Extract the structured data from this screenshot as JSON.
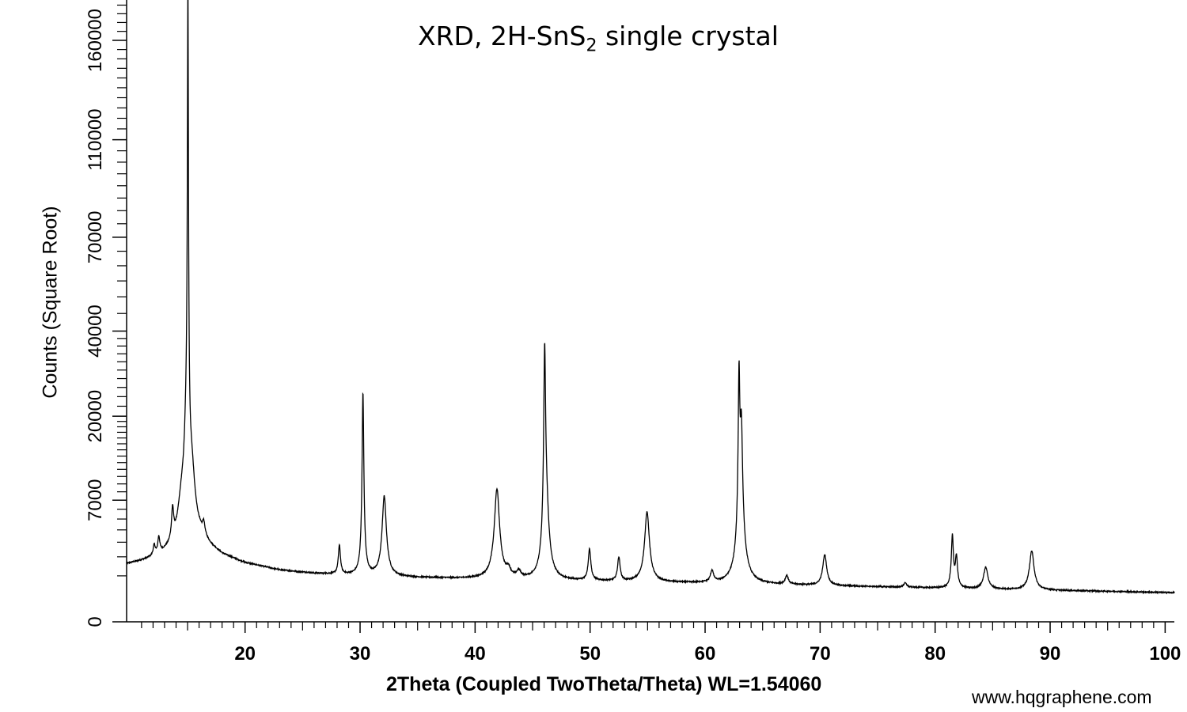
{
  "chart_data": {
    "type": "line",
    "title_main": "XRD, 2H-SnS",
    "title_sub": "2",
    "title_rest": " single crystal",
    "xlabel": "2Theta (Coupled TwoTheta/Theta) WL=1.54060",
    "ylabel": "Counts (Square Root)",
    "y_scale": "sqrt",
    "xlim": [
      9.7,
      100.8
    ],
    "ylim": [
      0,
      183000
    ],
    "x_ticks": [
      20,
      30,
      40,
      50,
      60,
      70,
      80,
      90,
      100
    ],
    "x_tick_labels": [
      "20",
      "30",
      "40",
      "50",
      "60",
      "70",
      "80",
      "90",
      "100"
    ],
    "y_ticks": [
      0,
      7000,
      20000,
      40000,
      70000,
      110000,
      160000
    ],
    "y_tick_labels": [
      "0",
      "7000",
      "20000",
      "40000",
      "70000",
      "110000",
      "160000"
    ],
    "grid": false,
    "series": [
      {
        "background": [
          [
            9.7,
            1550
          ],
          [
            11.0,
            1700
          ],
          [
            12.5,
            1950
          ],
          [
            14.0,
            2400
          ],
          [
            16.0,
            3100
          ],
          [
            17.0,
            2500
          ],
          [
            18.0,
            2050
          ],
          [
            20.0,
            1600
          ],
          [
            23.0,
            1250
          ],
          [
            26.0,
            1100
          ],
          [
            30.0,
            1000
          ],
          [
            35.0,
            920
          ],
          [
            40.0,
            870
          ],
          [
            45.0,
            820
          ],
          [
            50.0,
            780
          ],
          [
            55.0,
            740
          ],
          [
            60.0,
            700
          ],
          [
            65.0,
            660
          ],
          [
            70.0,
            620
          ],
          [
            75.0,
            580
          ],
          [
            80.0,
            540
          ],
          [
            85.0,
            500
          ],
          [
            90.0,
            470
          ],
          [
            95.0,
            440
          ],
          [
            100.8,
            400
          ]
        ],
        "peaks": [
          [
            12.1,
            700,
            0.1
          ],
          [
            12.5,
            1200,
            0.1
          ],
          [
            13.7,
            2900,
            0.1
          ],
          [
            14.5,
            3500,
            0.35
          ],
          [
            15.03,
            180000,
            0.045
          ],
          [
            14.9,
            12000,
            0.2
          ],
          [
            15.35,
            7000,
            0.3
          ],
          [
            16.4,
            1100,
            0.12
          ],
          [
            28.2,
            1700,
            0.1
          ],
          [
            30.25,
            24000,
            0.07
          ],
          [
            32.1,
            6500,
            0.18
          ],
          [
            41.9,
            7500,
            0.22
          ],
          [
            42.9,
            350,
            0.2
          ],
          [
            43.8,
            300,
            0.2
          ],
          [
            46.05,
            33000,
            0.08
          ],
          [
            46.2,
            5000,
            0.2
          ],
          [
            49.95,
            1700,
            0.12
          ],
          [
            52.5,
            1200,
            0.12
          ],
          [
            54.95,
            5000,
            0.2
          ],
          [
            60.6,
            500,
            0.15
          ],
          [
            62.95,
            26000,
            0.07
          ],
          [
            63.15,
            14000,
            0.1
          ],
          [
            63.1,
            4000,
            0.25
          ],
          [
            67.1,
            350,
            0.15
          ],
          [
            70.4,
            1500,
            0.18
          ],
          [
            77.4,
            150,
            0.15
          ],
          [
            81.5,
            3000,
            0.09
          ],
          [
            81.85,
            1500,
            0.1
          ],
          [
            84.4,
            900,
            0.2
          ],
          [
            88.4,
            1900,
            0.2
          ]
        ]
      }
    ],
    "watermark": "www.hqgraphene.com"
  }
}
